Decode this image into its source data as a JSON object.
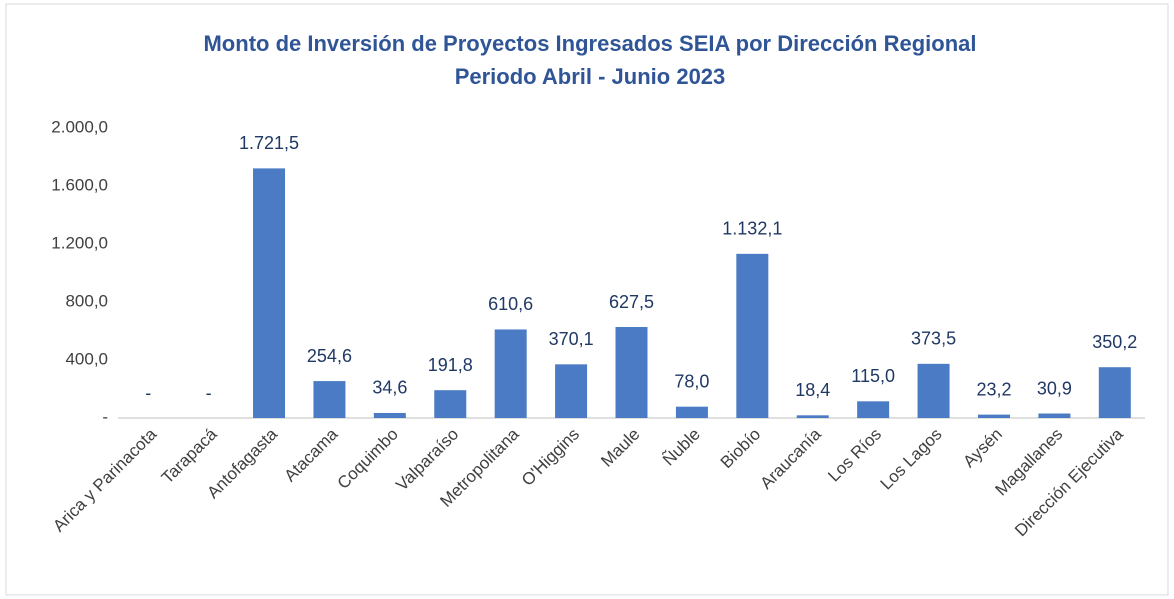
{
  "chart_data": {
    "type": "bar",
    "title": "Monto de Inversión de Proyectos Ingresados SEIA por Dirección Regional",
    "subtitle": "Periodo Abril - Junio 2023",
    "categories": [
      "Arica y Parinacota",
      "Tarapacá",
      "Antofagasta",
      "Atacama",
      "Coquimbo",
      "Valparaíso",
      "Metropolitana",
      "O'Higgins",
      "Maule",
      "Ñuble",
      "Biobío",
      "Araucanía",
      "Los Ríos",
      "Los Lagos",
      "Aysén",
      "Magallanes",
      "Dirección Ejecutiva"
    ],
    "values": [
      0,
      0,
      1721.5,
      254.6,
      34.6,
      191.8,
      610.6,
      370.1,
      627.5,
      78.0,
      1132.1,
      18.4,
      115.0,
      373.5,
      23.2,
      30.9,
      350.2
    ],
    "value_labels": [
      "-",
      "-",
      "1.721,5",
      "254,6",
      "34,6",
      "191,8",
      "610,6",
      "370,1",
      "627,5",
      "78,0",
      "1.132,1",
      "18,4",
      "115,0",
      "373,5",
      "23,2",
      "30,9",
      "350,2"
    ],
    "color": "#4a7bc4",
    "ylim": [
      0,
      2000
    ],
    "yticks": [
      {
        "value": 0,
        "label": "-"
      },
      {
        "value": 400,
        "label": "400,0"
      },
      {
        "value": 800,
        "label": "800,0"
      },
      {
        "value": 1200,
        "label": "1.200,0"
      },
      {
        "value": 1600,
        "label": "1.600,0"
      },
      {
        "value": 2000,
        "label": "2.000,0"
      }
    ],
    "grid": false
  }
}
